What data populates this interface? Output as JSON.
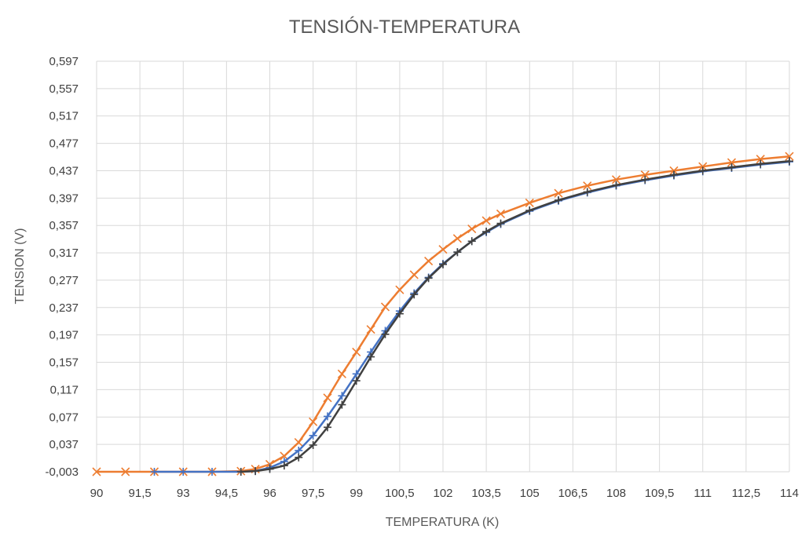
{
  "chart_data": {
    "type": "scatter",
    "title": "TENSIÓN-TEMPERATURA",
    "xlabel": "TEMPERATURA (K)",
    "ylabel": "TENSION (V)",
    "xlim": [
      90,
      114
    ],
    "ylim": [
      -0.003,
      0.597
    ],
    "grid": true,
    "legend": "none",
    "x_ticks": [
      "90",
      "91,5",
      "93",
      "94,5",
      "96",
      "97,5",
      "99",
      "100,5",
      "102",
      "103,5",
      "105",
      "106,5",
      "108",
      "109,5",
      "111",
      "112,5",
      "114"
    ],
    "y_ticks": [
      "-0,003",
      "0,037",
      "0,077",
      "0,117",
      "0,157",
      "0,197",
      "0,237",
      "0,277",
      "0,317",
      "0,357",
      "0,397",
      "0,437",
      "0,477",
      "0,517",
      "0,557",
      "0,597"
    ],
    "series": [
      {
        "color": "#ed7d31",
        "marker": "x",
        "x": [
          90,
          91,
          92,
          93,
          94,
          95,
          95.5,
          96,
          96.5,
          97,
          97.5,
          98,
          98.5,
          99,
          99.5,
          100,
          100.5,
          101,
          101.5,
          102,
          102.5,
          103,
          103.5,
          104,
          105,
          106,
          107,
          108,
          109,
          110,
          111,
          112,
          113,
          114
        ],
        "y": [
          -0.003,
          -0.003,
          -0.003,
          -0.003,
          -0.003,
          -0.002,
          0.001,
          0.008,
          0.02,
          0.04,
          0.07,
          0.105,
          0.14,
          0.172,
          0.205,
          0.238,
          0.263,
          0.285,
          0.305,
          0.322,
          0.338,
          0.352,
          0.364,
          0.374,
          0.39,
          0.404,
          0.415,
          0.424,
          0.431,
          0.437,
          0.443,
          0.449,
          0.454,
          0.458
        ]
      },
      {
        "color": "#4472c4",
        "marker": "+",
        "x": [
          92,
          93,
          94,
          95,
          95.5,
          96,
          96.5,
          97,
          97.5,
          98,
          98.5,
          99,
          99.5,
          100,
          100.5,
          101,
          101.5,
          102,
          102.5,
          103,
          103.5,
          104,
          105,
          106,
          107,
          108,
          109,
          110,
          111,
          112,
          113,
          114
        ],
        "y": [
          -0.003,
          -0.003,
          -0.003,
          -0.003,
          -0.002,
          0.003,
          0.012,
          0.028,
          0.05,
          0.078,
          0.108,
          0.14,
          0.172,
          0.203,
          0.232,
          0.258,
          0.281,
          0.301,
          0.318,
          0.334,
          0.347,
          0.359,
          0.378,
          0.393,
          0.405,
          0.415,
          0.423,
          0.43,
          0.436,
          0.441,
          0.446,
          0.45
        ]
      },
      {
        "color": "#404040",
        "marker": "+",
        "x": [
          95,
          95.5,
          96,
          96.5,
          97,
          97.5,
          98,
          98.5,
          99,
          99.5,
          100,
          100.5,
          101,
          101.5,
          102,
          102.5,
          103,
          103.5,
          104,
          105,
          106,
          107,
          108,
          109,
          110,
          111,
          112,
          113,
          114
        ],
        "y": [
          -0.003,
          -0.002,
          0.001,
          0.006,
          0.018,
          0.036,
          0.062,
          0.095,
          0.13,
          0.165,
          0.198,
          0.228,
          0.256,
          0.28,
          0.3,
          0.318,
          0.334,
          0.348,
          0.36,
          0.379,
          0.394,
          0.406,
          0.416,
          0.424,
          0.431,
          0.437,
          0.442,
          0.447,
          0.451
        ]
      }
    ]
  }
}
